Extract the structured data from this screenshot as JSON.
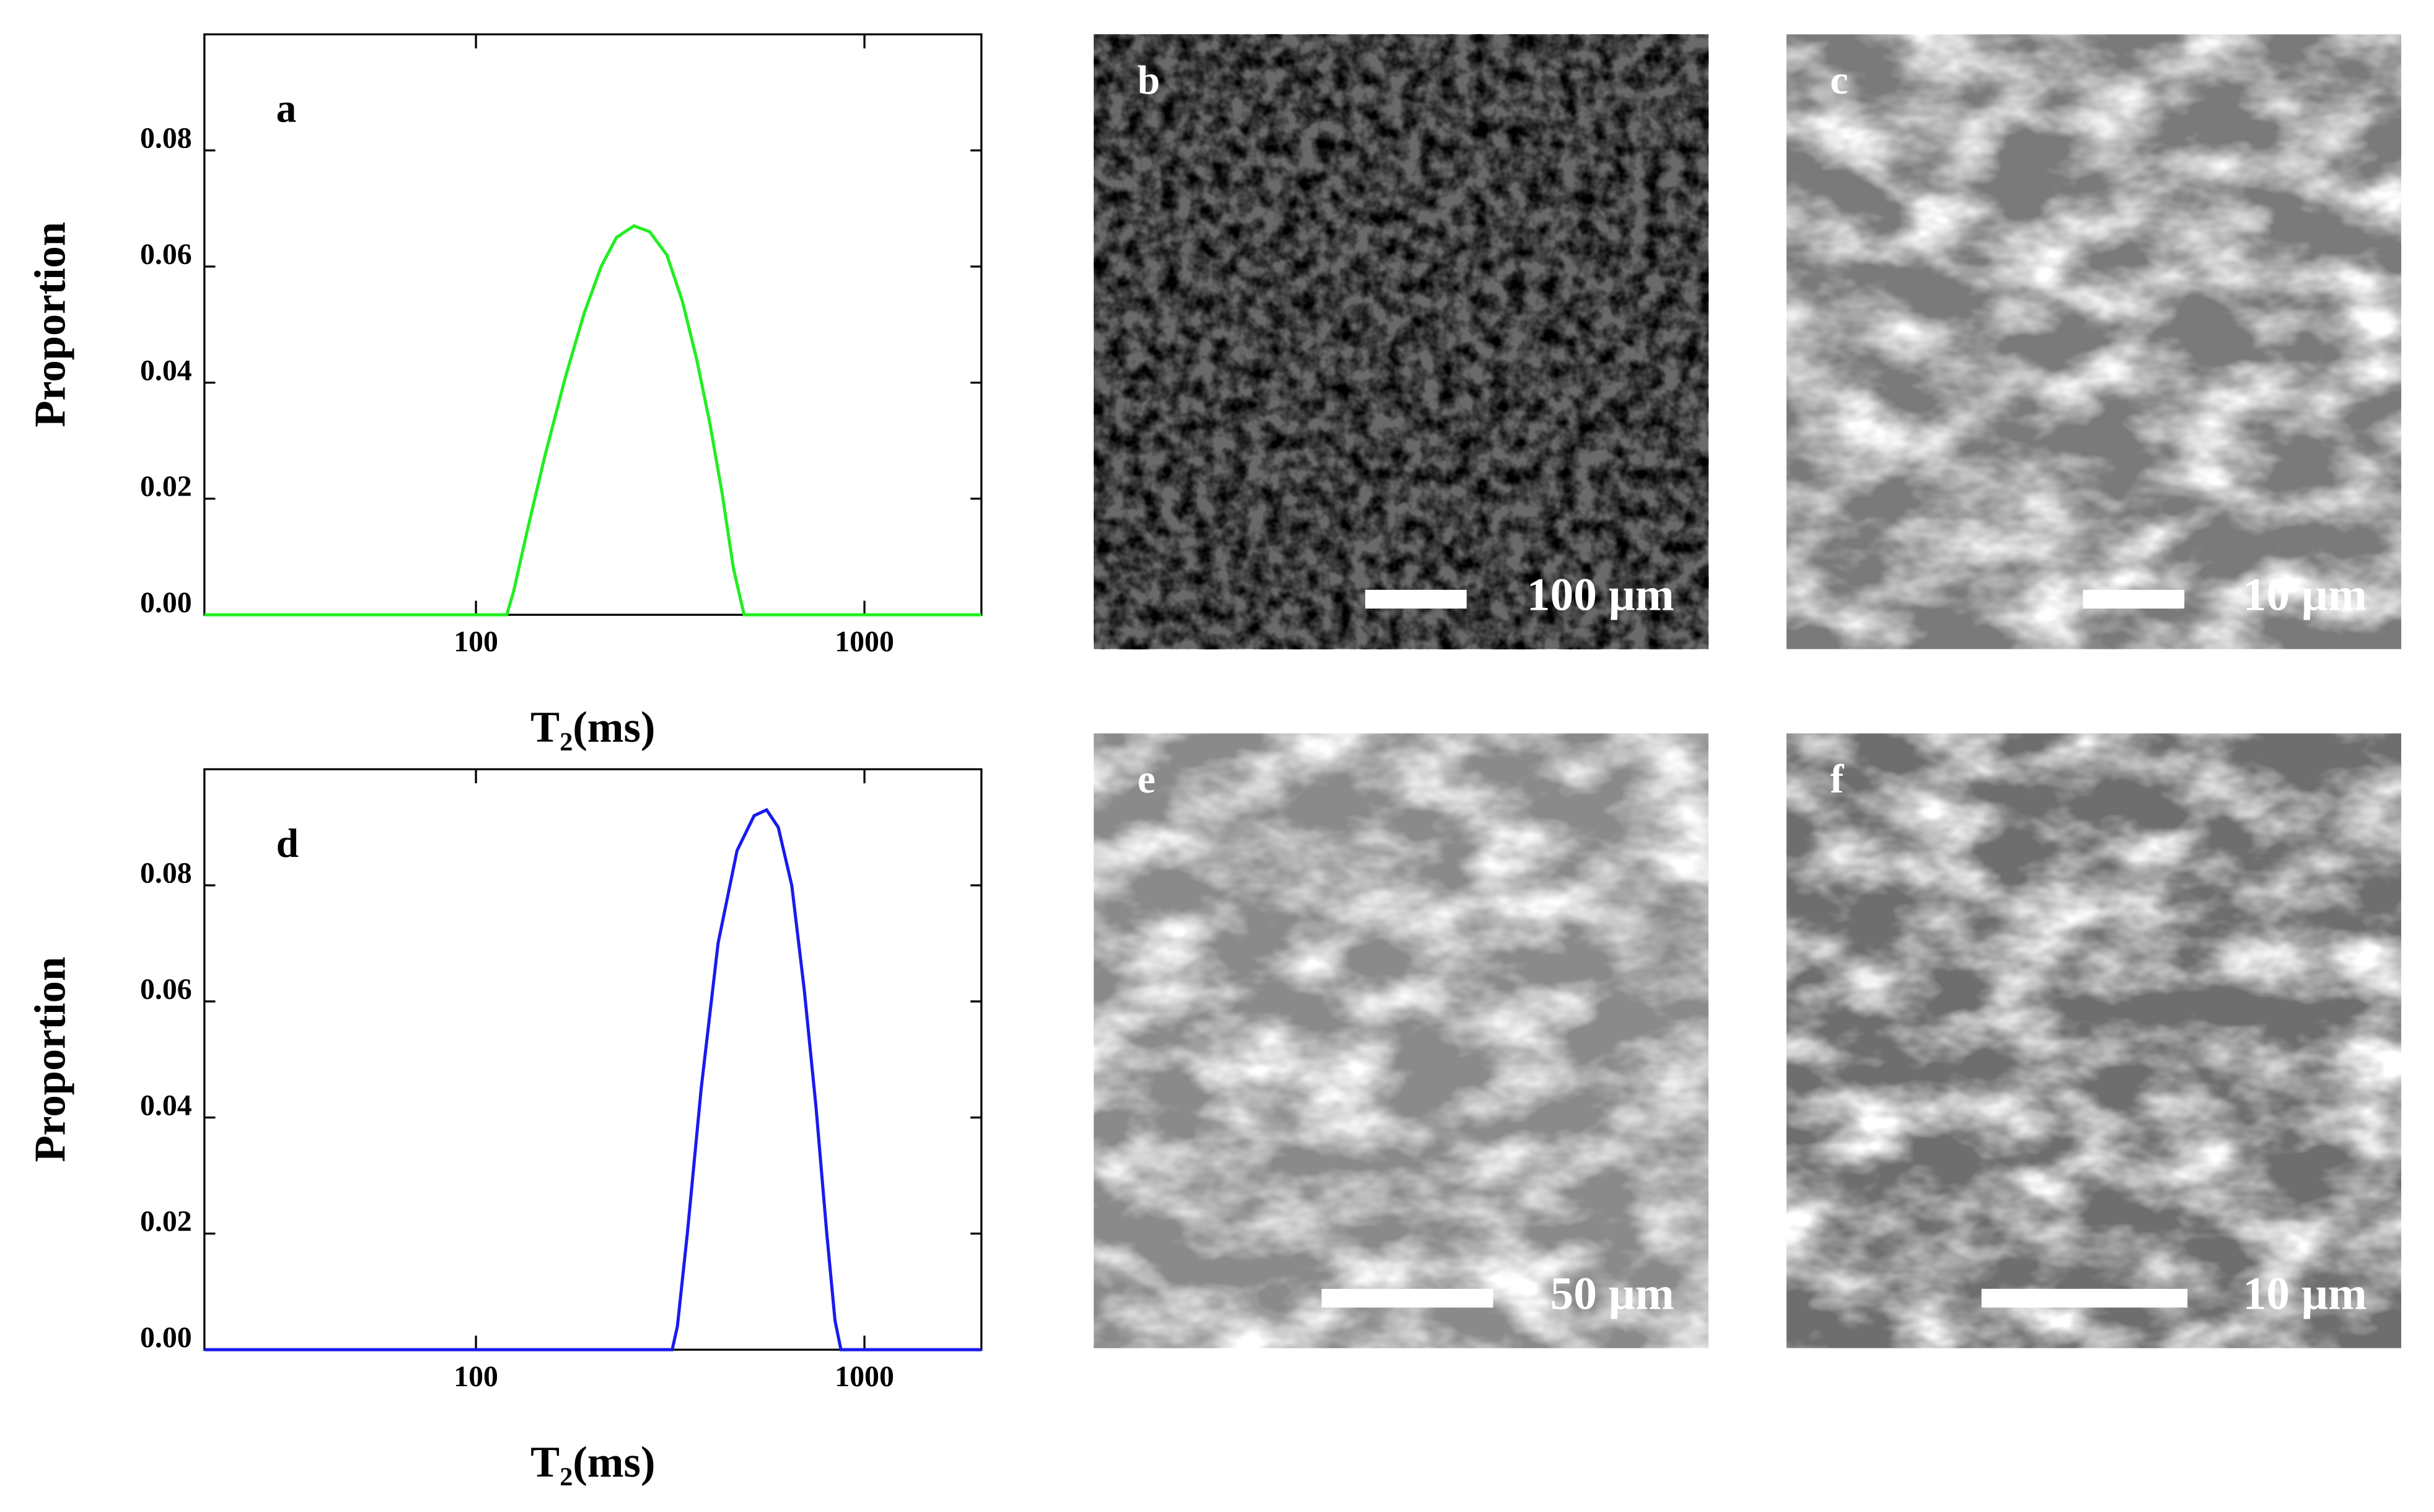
{
  "chart_data": [
    {
      "type": "line",
      "title": "a",
      "y_label": "Proportion",
      "x_label": "T₂(ms)",
      "xscale": "log",
      "color": "#22ee22",
      "x": [
        20,
        120,
        125,
        135,
        150,
        170,
        190,
        210,
        230,
        255,
        280,
        310,
        340,
        370,
        400,
        430,
        460,
        490,
        2000
      ],
      "values": [
        0,
        0,
        0.004,
        0.014,
        0.027,
        0.041,
        0.052,
        0.06,
        0.065,
        0.067,
        0.066,
        0.062,
        0.054,
        0.044,
        0.033,
        0.021,
        0.008,
        0,
        0
      ],
      "xlim": [
        20,
        2000
      ],
      "ylim": [
        0,
        0.1
      ],
      "xticks": [
        100,
        1000
      ],
      "yticks": [
        {
          "value": 0,
          "label": "0.00"
        },
        {
          "value": 0.02,
          "label": "0.02"
        },
        {
          "value": 0.04,
          "label": "0.04"
        },
        {
          "value": 0.06,
          "label": "0.06"
        },
        {
          "value": 0.08,
          "label": "0.08"
        }
      ]
    },
    {
      "type": "line",
      "title": "d",
      "y_label": "Proportion",
      "x_label": "T₂(ms)",
      "xscale": "log",
      "color": "#1a1aee",
      "x": [
        20,
        320,
        330,
        350,
        380,
        420,
        470,
        520,
        560,
        600,
        650,
        700,
        750,
        800,
        840,
        870,
        2000
      ],
      "values": [
        0,
        0,
        0.004,
        0.02,
        0.045,
        0.07,
        0.086,
        0.092,
        0.093,
        0.09,
        0.08,
        0.062,
        0.042,
        0.02,
        0.005,
        0,
        0
      ],
      "xlim": [
        20,
        2000
      ],
      "ylim": [
        0,
        0.1
      ],
      "xticks": [
        100,
        1000
      ],
      "yticks": [
        {
          "value": 0,
          "label": "0.00"
        },
        {
          "value": 0.02,
          "label": "0.02"
        },
        {
          "value": 0.04,
          "label": "0.04"
        },
        {
          "value": 0.06,
          "label": "0.06"
        },
        {
          "value": 0.08,
          "label": "0.08"
        }
      ]
    }
  ],
  "images": [
    {
      "label": "b",
      "scale_bar": "100 μm"
    },
    {
      "label": "c",
      "scale_bar": "10 μm"
    },
    {
      "label": "e",
      "scale_bar": "50 μm"
    },
    {
      "label": "f",
      "scale_bar": "10 μm"
    }
  ]
}
